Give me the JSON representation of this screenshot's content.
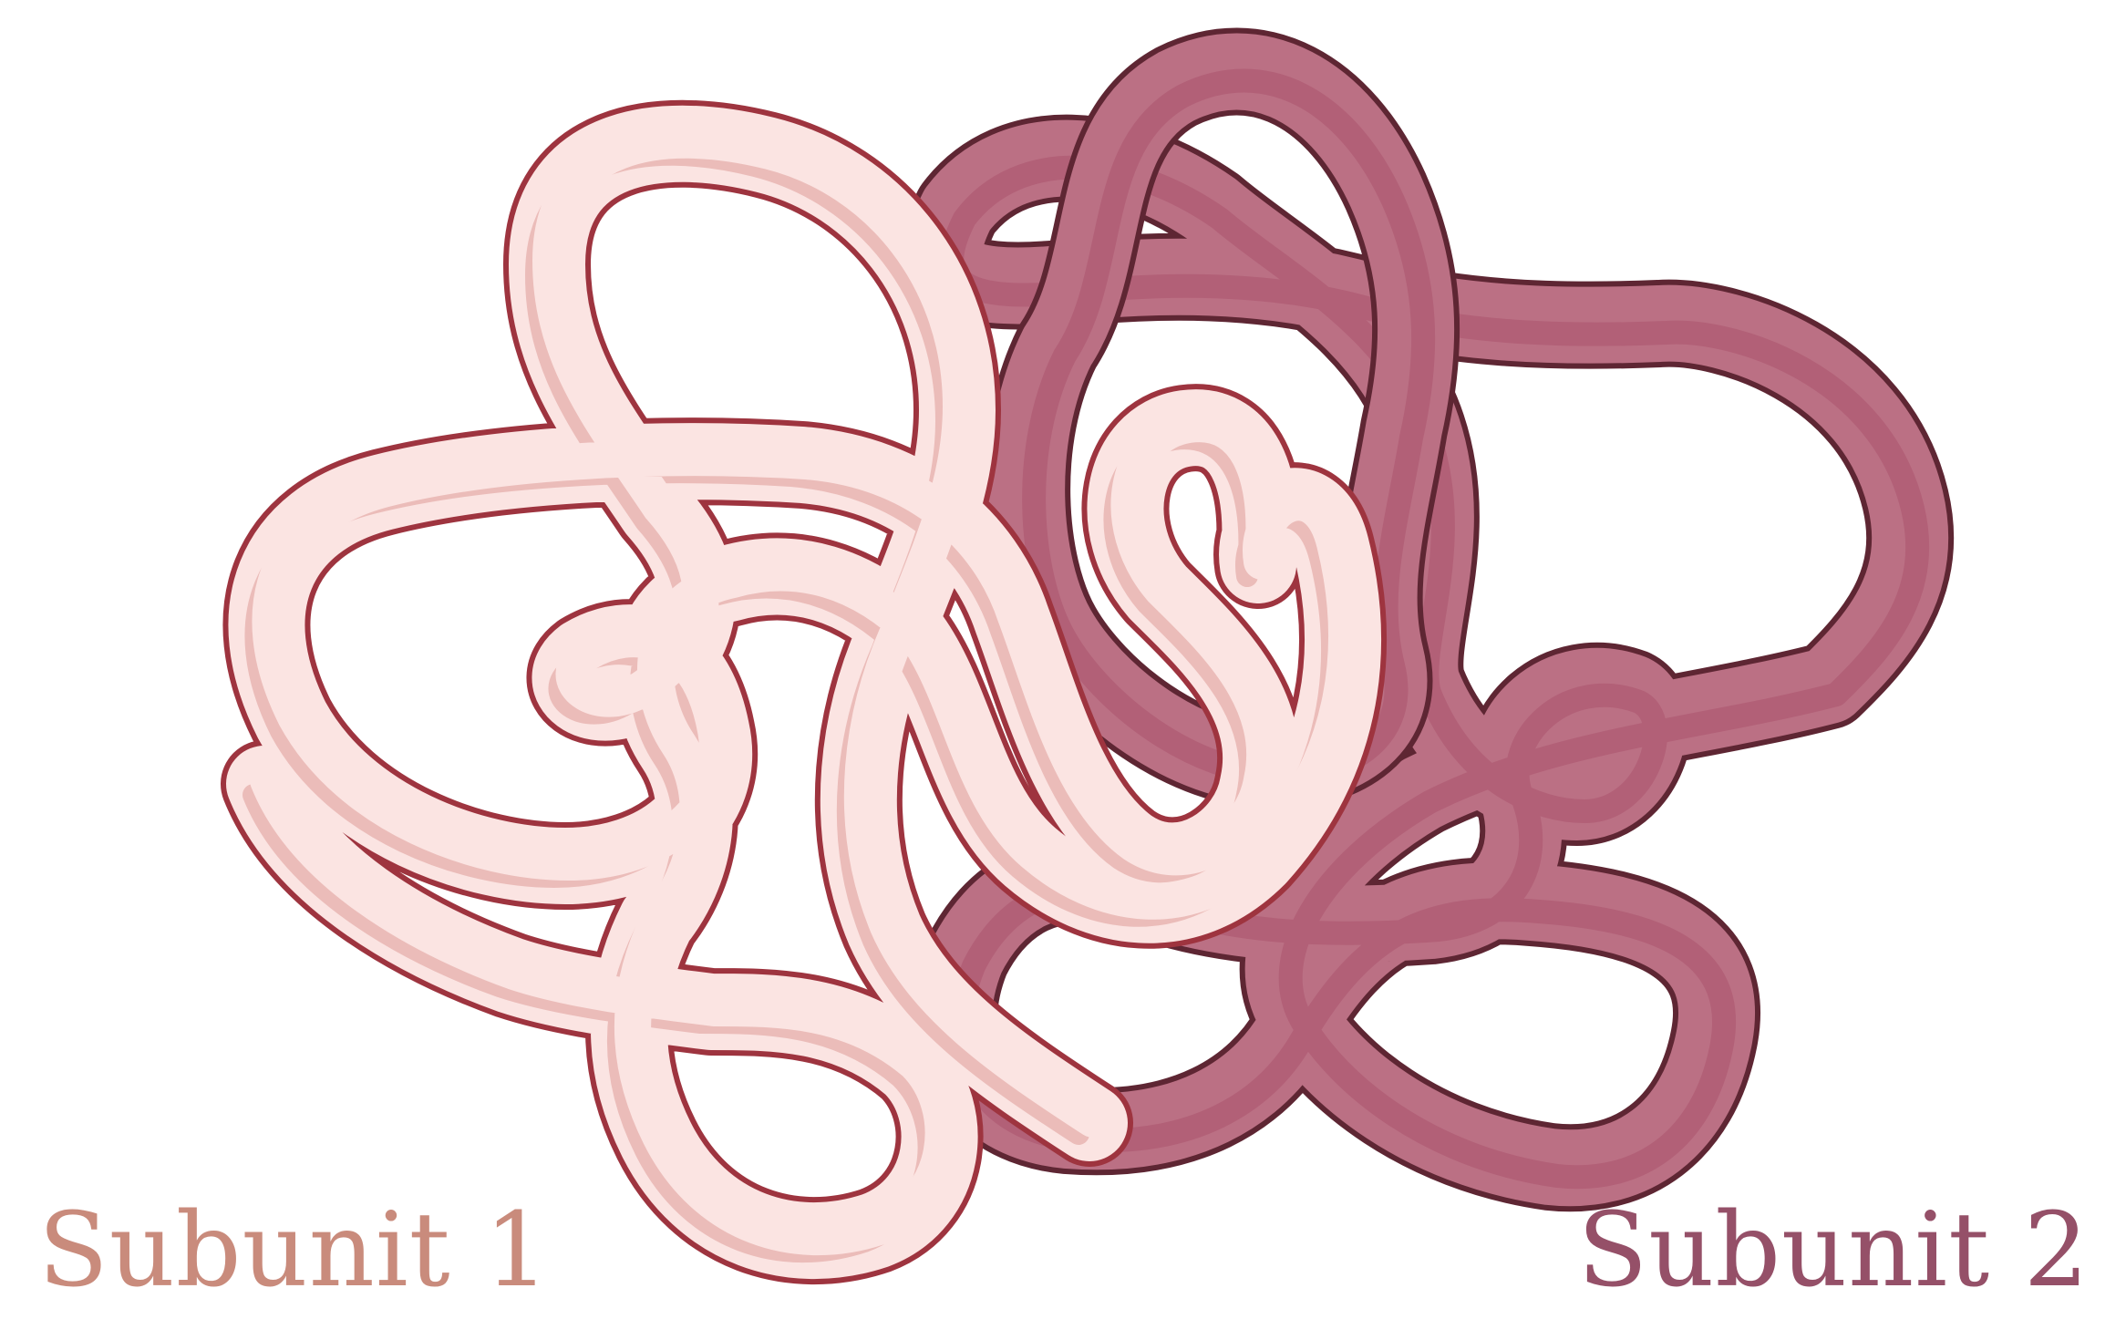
{
  "diagram": {
    "subunits": [
      {
        "label": "Subunit 1",
        "fill": "#fbe4e2",
        "shade": "#ebbcb9",
        "stroke": "#9e343f",
        "label_color": "#c98b7c"
      },
      {
        "label": "Subunit 2",
        "fill": "#bb7084",
        "shade": "#b26077",
        "stroke": "#5e2633",
        "label_color": "#955068"
      }
    ]
  }
}
